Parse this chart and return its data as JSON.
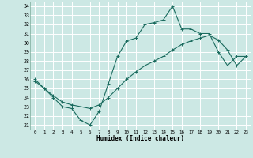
{
  "title": "",
  "xlabel": "Humidex (Indice chaleur)",
  "bg_color": "#cce8e4",
  "grid_color": "#ffffff",
  "line_color": "#1a6b5e",
  "xlim": [
    -0.5,
    23.5
  ],
  "ylim": [
    20.5,
    34.5
  ],
  "yticks": [
    21,
    22,
    23,
    24,
    25,
    26,
    27,
    28,
    29,
    30,
    31,
    32,
    33,
    34
  ],
  "xticks": [
    0,
    1,
    2,
    3,
    4,
    5,
    6,
    7,
    8,
    9,
    10,
    11,
    12,
    13,
    14,
    15,
    16,
    17,
    18,
    19,
    20,
    21,
    22,
    23
  ],
  "line1_x": [
    0,
    1,
    2,
    3,
    4,
    5,
    6,
    7,
    8,
    9,
    10,
    11,
    12,
    13,
    14,
    15,
    16,
    17,
    18,
    19,
    20,
    21,
    22,
    23
  ],
  "line1_y": [
    26.0,
    25.0,
    24.0,
    23.0,
    22.8,
    21.5,
    21.0,
    22.5,
    25.5,
    28.5,
    30.2,
    30.5,
    32.0,
    32.2,
    32.5,
    34.0,
    31.5,
    31.5,
    31.0,
    31.0,
    29.0,
    27.5,
    28.5,
    28.5
  ],
  "line2_x": [
    0,
    1,
    2,
    3,
    4,
    5,
    6,
    7,
    8,
    9,
    10,
    11,
    12,
    13,
    14,
    15,
    16,
    17,
    18,
    19,
    20,
    21,
    22,
    23
  ],
  "line2_y": [
    25.8,
    25.0,
    24.2,
    23.5,
    23.2,
    23.0,
    22.8,
    23.2,
    24.0,
    25.0,
    26.0,
    26.8,
    27.5,
    28.0,
    28.5,
    29.2,
    29.8,
    30.2,
    30.5,
    30.8,
    30.3,
    29.2,
    27.5,
    28.5
  ]
}
